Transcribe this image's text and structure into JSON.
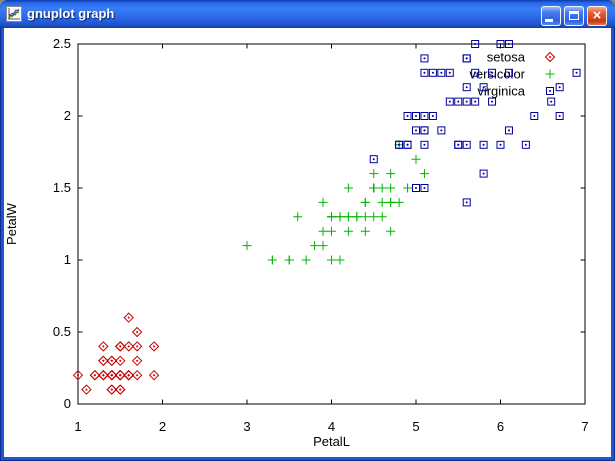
{
  "window": {
    "title": "gnuplot graph",
    "controls": {
      "minimize": "minimize",
      "maximize": "maximize",
      "close": "close"
    }
  },
  "chart_data": {
    "type": "scatter",
    "title": "",
    "xlabel": "PetalL",
    "ylabel": "PetalW",
    "xlim": [
      1,
      7
    ],
    "ylim": [
      0,
      2.5
    ],
    "xticks": [
      "1",
      "2",
      "3",
      "4",
      "5",
      "6",
      "7"
    ],
    "yticks": [
      "0",
      "0.5",
      "1",
      "1.5",
      "2",
      "2.5"
    ],
    "grid": false,
    "legend_position": "top-right-inside",
    "axis_color": "#000000",
    "text_color": "#000000",
    "series": [
      {
        "name": "setosa",
        "marker": "diamond",
        "color": "#c40000",
        "points": [
          [
            1.4,
            0.2
          ],
          [
            1.4,
            0.2
          ],
          [
            1.3,
            0.2
          ],
          [
            1.5,
            0.2
          ],
          [
            1.4,
            0.2
          ],
          [
            1.7,
            0.4
          ],
          [
            1.4,
            0.3
          ],
          [
            1.5,
            0.2
          ],
          [
            1.4,
            0.2
          ],
          [
            1.5,
            0.1
          ],
          [
            1.5,
            0.2
          ],
          [
            1.6,
            0.2
          ],
          [
            1.4,
            0.1
          ],
          [
            1.1,
            0.1
          ],
          [
            1.2,
            0.2
          ],
          [
            1.5,
            0.4
          ],
          [
            1.3,
            0.4
          ],
          [
            1.4,
            0.3
          ],
          [
            1.7,
            0.3
          ],
          [
            1.5,
            0.3
          ],
          [
            1.7,
            0.2
          ],
          [
            1.5,
            0.4
          ],
          [
            1.0,
            0.2
          ],
          [
            1.7,
            0.5
          ],
          [
            1.9,
            0.2
          ],
          [
            1.6,
            0.2
          ],
          [
            1.6,
            0.4
          ],
          [
            1.5,
            0.2
          ],
          [
            1.4,
            0.2
          ],
          [
            1.6,
            0.2
          ],
          [
            1.6,
            0.2
          ],
          [
            1.5,
            0.4
          ],
          [
            1.5,
            0.1
          ],
          [
            1.4,
            0.2
          ],
          [
            1.5,
            0.2
          ],
          [
            1.2,
            0.2
          ],
          [
            1.3,
            0.2
          ],
          [
            1.4,
            0.1
          ],
          [
            1.3,
            0.2
          ],
          [
            1.5,
            0.2
          ],
          [
            1.3,
            0.3
          ],
          [
            1.3,
            0.3
          ],
          [
            1.3,
            0.2
          ],
          [
            1.6,
            0.6
          ],
          [
            1.9,
            0.4
          ],
          [
            1.4,
            0.3
          ],
          [
            1.6,
            0.2
          ],
          [
            1.4,
            0.2
          ],
          [
            1.5,
            0.2
          ],
          [
            1.4,
            0.2
          ]
        ]
      },
      {
        "name": "versicolor",
        "marker": "plus",
        "color": "#00b400",
        "points": [
          [
            4.7,
            1.4
          ],
          [
            4.5,
            1.5
          ],
          [
            4.9,
            1.5
          ],
          [
            4.0,
            1.3
          ],
          [
            4.6,
            1.5
          ],
          [
            4.5,
            1.3
          ],
          [
            4.7,
            1.6
          ],
          [
            3.3,
            1.0
          ],
          [
            4.6,
            1.3
          ],
          [
            3.9,
            1.4
          ],
          [
            3.5,
            1.0
          ],
          [
            4.2,
            1.5
          ],
          [
            4.0,
            1.0
          ],
          [
            4.7,
            1.4
          ],
          [
            3.6,
            1.3
          ],
          [
            4.4,
            1.4
          ],
          [
            4.5,
            1.5
          ],
          [
            4.1,
            1.0
          ],
          [
            4.5,
            1.5
          ],
          [
            3.9,
            1.1
          ],
          [
            4.8,
            1.8
          ],
          [
            4.0,
            1.3
          ],
          [
            4.9,
            1.5
          ],
          [
            4.7,
            1.2
          ],
          [
            4.3,
            1.3
          ],
          [
            4.4,
            1.4
          ],
          [
            4.8,
            1.4
          ],
          [
            5.0,
            1.7
          ],
          [
            4.5,
            1.5
          ],
          [
            3.5,
            1.0
          ],
          [
            3.8,
            1.1
          ],
          [
            3.7,
            1.0
          ],
          [
            3.9,
            1.2
          ],
          [
            5.1,
            1.6
          ],
          [
            4.5,
            1.5
          ],
          [
            4.5,
            1.6
          ],
          [
            4.7,
            1.5
          ],
          [
            4.4,
            1.3
          ],
          [
            4.1,
            1.3
          ],
          [
            4.0,
            1.3
          ],
          [
            4.4,
            1.2
          ],
          [
            4.6,
            1.4
          ],
          [
            4.0,
            1.2
          ],
          [
            3.3,
            1.0
          ],
          [
            4.2,
            1.3
          ],
          [
            4.2,
            1.2
          ],
          [
            4.2,
            1.3
          ],
          [
            4.3,
            1.3
          ],
          [
            3.0,
            1.1
          ],
          [
            4.1,
            1.3
          ]
        ]
      },
      {
        "name": "virginica",
        "marker": "square",
        "color": "#0000a0",
        "points": [
          [
            6.0,
            2.5
          ],
          [
            5.1,
            1.9
          ],
          [
            5.9,
            2.1
          ],
          [
            5.6,
            1.8
          ],
          [
            5.8,
            2.2
          ],
          [
            6.6,
            2.1
          ],
          [
            4.5,
            1.7
          ],
          [
            6.3,
            1.8
          ],
          [
            5.8,
            1.8
          ],
          [
            6.1,
            2.5
          ],
          [
            5.1,
            2.0
          ],
          [
            5.3,
            1.9
          ],
          [
            5.5,
            2.1
          ],
          [
            5.0,
            2.0
          ],
          [
            5.1,
            2.4
          ],
          [
            5.3,
            2.3
          ],
          [
            5.5,
            1.8
          ],
          [
            6.7,
            2.2
          ],
          [
            6.9,
            2.3
          ],
          [
            5.0,
            1.5
          ],
          [
            5.7,
            2.3
          ],
          [
            4.9,
            2.0
          ],
          [
            6.7,
            2.0
          ],
          [
            4.9,
            1.8
          ],
          [
            5.7,
            2.1
          ],
          [
            6.0,
            1.8
          ],
          [
            4.8,
            1.8
          ],
          [
            4.9,
            1.8
          ],
          [
            5.6,
            2.1
          ],
          [
            5.8,
            1.6
          ],
          [
            6.1,
            1.9
          ],
          [
            6.4,
            2.0
          ],
          [
            5.6,
            2.2
          ],
          [
            5.1,
            1.5
          ],
          [
            5.6,
            1.4
          ],
          [
            6.1,
            2.3
          ],
          [
            5.6,
            2.4
          ],
          [
            5.5,
            1.8
          ],
          [
            4.8,
            1.8
          ],
          [
            5.4,
            2.1
          ],
          [
            5.6,
            2.4
          ],
          [
            5.1,
            2.3
          ],
          [
            5.1,
            1.9
          ],
          [
            5.9,
            2.3
          ],
          [
            5.7,
            2.5
          ],
          [
            5.2,
            2.3
          ],
          [
            5.0,
            1.9
          ],
          [
            5.2,
            2.0
          ],
          [
            5.4,
            2.3
          ],
          [
            5.1,
            1.8
          ]
        ]
      }
    ]
  }
}
